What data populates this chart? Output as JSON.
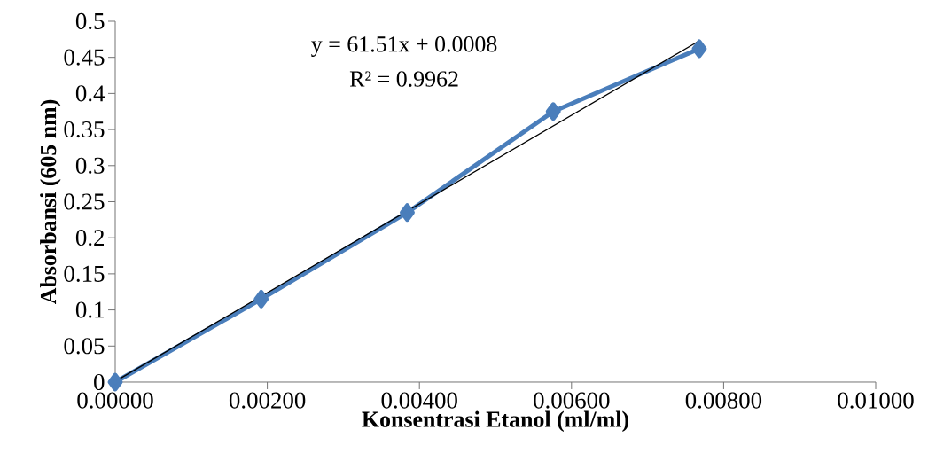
{
  "chart_data": {
    "type": "line",
    "xlabel": "Konsentrasi Etanol (ml/ml)",
    "ylabel": "Absorbansi (605 nm)",
    "x": [
      0,
      0.00192,
      0.00384,
      0.00576,
      0.00768
    ],
    "series": [
      {
        "color": "#4a7ebb",
        "values": [
          0,
          0.115,
          0.235,
          0.375,
          0.462
        ],
        "marker": "diamond",
        "line_style": "solid"
      },
      {
        "type": "line",
        "color": "#000000",
        "x": [
          0,
          0.00768
        ],
        "values": [
          0.001,
          0.473
        ],
        "marker": "none",
        "line_style": "solid"
      }
    ],
    "xlim": [
      0,
      0.01
    ],
    "xticks": [
      {
        "value": 0,
        "label": "0.00000"
      },
      {
        "value": 0.002,
        "label": "0.00200"
      },
      {
        "value": 0.004,
        "label": "0.00400"
      },
      {
        "value": 0.006,
        "label": "0.00600"
      },
      {
        "value": 0.008,
        "label": "0.00800"
      },
      {
        "value": 0.01,
        "label": "0.01000"
      }
    ],
    "ylim": [
      0,
      0.5
    ],
    "yticks": [
      0,
      0.05,
      0.1,
      0.15,
      0.2,
      0.25,
      0.3,
      0.35,
      0.4,
      0.45,
      0.5
    ],
    "annotations": [
      "y = 61.51x + 0.0008",
      "R² = 0.9962"
    ],
    "grid": false
  }
}
